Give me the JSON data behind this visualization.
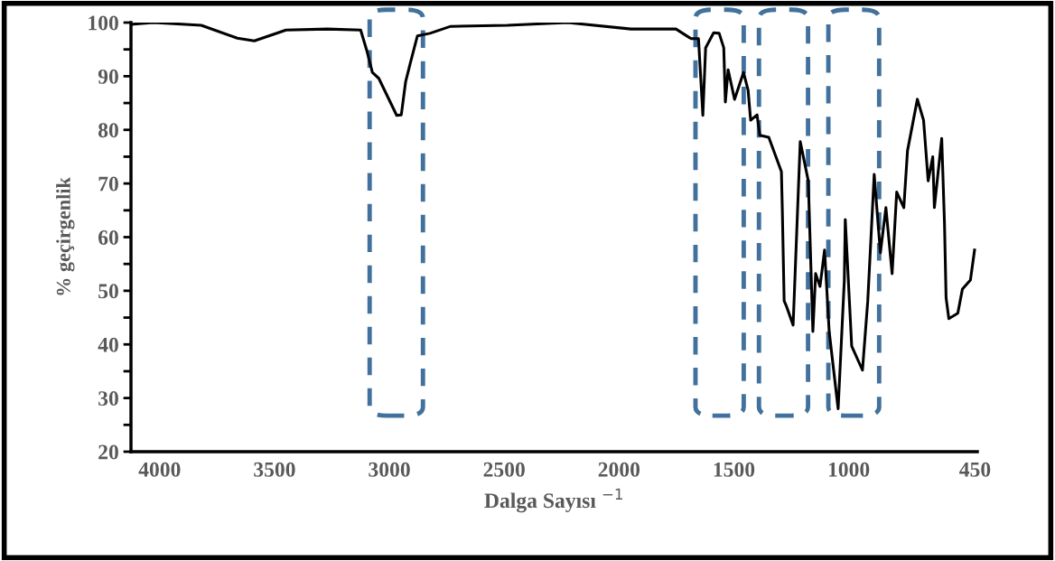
{
  "chart_data": {
    "type": "line",
    "xlabel": "Dalga Sayısı $^{−1}$",
    "ylabel": "% geçirgenlik",
    "x": [
      4120,
      4027,
      3819,
      3662,
      3588,
      3450,
      3270,
      3125,
      3097,
      3074,
      3046,
      2968,
      2948,
      2929,
      2909,
      2878,
      2823,
      2733,
      2486,
      2223,
      1948,
      1752,
      1686,
      1654,
      1635,
      1623,
      1588,
      1564,
      1544,
      1537,
      1525,
      1497,
      1458,
      1438,
      1427,
      1399,
      1387,
      1348,
      1293,
      1289,
      1281,
      1270,
      1242,
      1211,
      1176,
      1156,
      1144,
      1125,
      1105,
      1085,
      1046,
      1019,
      1015,
      987,
      940,
      917,
      889,
      862,
      838,
      811,
      791,
      760,
      744,
      701,
      674,
      654,
      634,
      627,
      595,
      583,
      576,
      564,
      525,
      505,
      470,
      452
    ],
    "series": [
      {
        "color": "#000000",
        "values": [
          99.7,
          100,
          99.5,
          97.1,
          96.6,
          98.6,
          98.8,
          98.6,
          94.6,
          90.7,
          89.6,
          82.7,
          82.8,
          89,
          92.4,
          97.5,
          98,
          99.3,
          99.5,
          100,
          98.8,
          98.8,
          97,
          97,
          82.7,
          95.3,
          98.1,
          98,
          95.3,
          85.2,
          91.2,
          85.7,
          90.7,
          87.4,
          81.8,
          82.8,
          79,
          78.6,
          72.2,
          65,
          48.1,
          47,
          43.6,
          77.8,
          70.5,
          42.4,
          53.2,
          50.8,
          57.6,
          42.4,
          28,
          52,
          63.3,
          39.7,
          35.2,
          48.1,
          71.7,
          57.1,
          65.5,
          53.2,
          68.4,
          65.5,
          76.1,
          85.7,
          81.8,
          70.5,
          75,
          65.5,
          78.4,
          62.6,
          48.7,
          44.8,
          45.8,
          50.3,
          52,
          57.6
        ]
      }
    ],
    "xlim": [
      4125,
      440
    ],
    "xticks": [
      4000,
      3500,
      3000,
      2500,
      2000,
      1500,
      1000,
      450
    ],
    "ylim": [
      20,
      100
    ],
    "yticks": [
      20,
      {
        "value": 25,
        "label": null
      },
      30,
      {
        "value": 35,
        "label": null
      },
      40,
      {
        "value": 45,
        "label": null
      },
      50,
      {
        "value": 55,
        "label": null
      },
      60,
      {
        "value": 65,
        "label": null
      },
      70,
      {
        "value": 75,
        "label": null
      },
      80,
      {
        "value": 85,
        "label": null
      },
      90,
      {
        "value": 95,
        "label": null
      },
      100
    ],
    "grid": false,
    "legend": false,
    "marker": "none",
    "line_style": "solid"
  }
}
